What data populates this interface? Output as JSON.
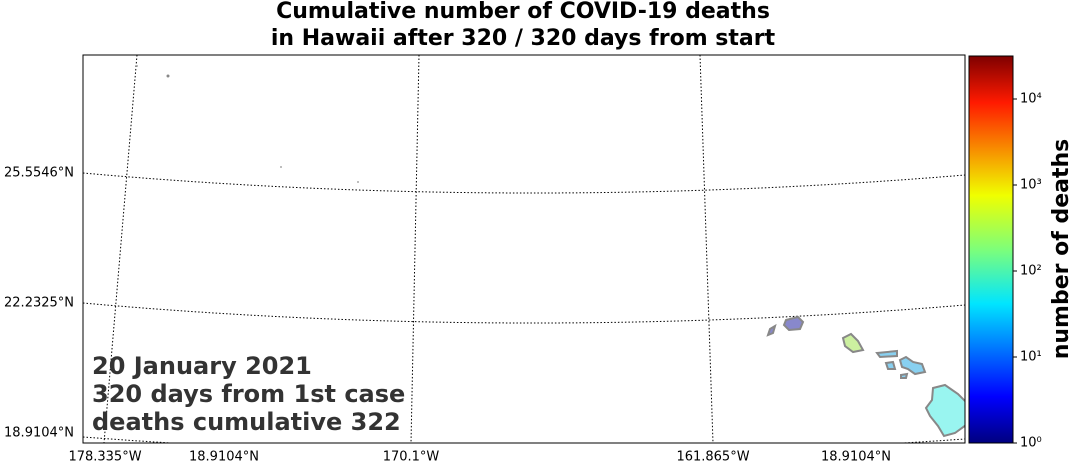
{
  "title": [
    "Cumulative number of COVID-19 deaths",
    "in Hawaii after 320 / 320 days from start"
  ],
  "map": {
    "lat_labels": [
      "25.5546°N",
      "22.2325°N",
      "18.9104°N"
    ],
    "lon_labels": [
      "178.335°W",
      "18.9104°N",
      "170.1°W",
      "161.865°W",
      "18.9104°N"
    ],
    "annotation": [
      "20 January 2021",
      "320 days from 1st case",
      "deaths cumulative 322"
    ]
  },
  "colorbar": {
    "label": "number of deaths",
    "scale": "log",
    "lim": [
      1,
      31623
    ],
    "ticks": [
      {
        "value": 1,
        "label": "10⁰"
      },
      {
        "value": 10,
        "label": "10¹"
      },
      {
        "value": 100,
        "label": "10²"
      },
      {
        "value": 1000,
        "label": "10³"
      },
      {
        "value": 10000,
        "label": "10⁴"
      }
    ]
  }
}
